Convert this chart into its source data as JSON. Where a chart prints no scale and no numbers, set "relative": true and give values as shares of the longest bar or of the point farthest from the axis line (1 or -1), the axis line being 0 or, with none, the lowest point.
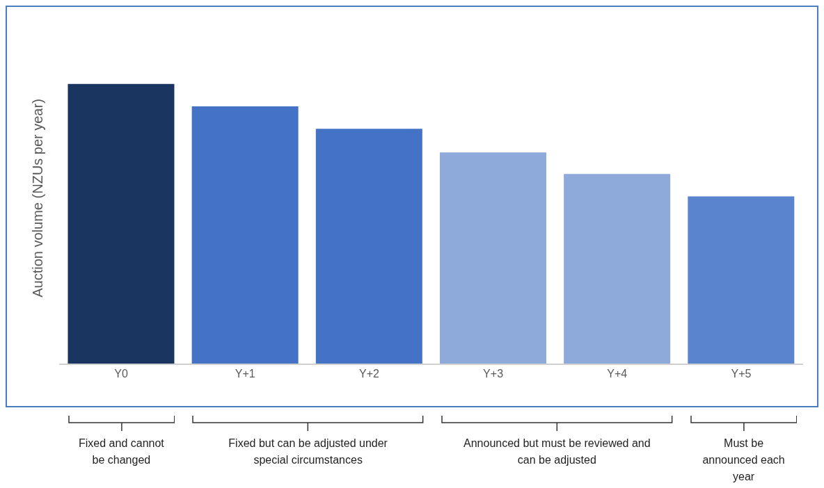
{
  "chart_data": {
    "type": "bar",
    "relative": true,
    "ylabel": "Auction volume (NZUs per year)",
    "categories": [
      "Y0",
      "Y+1",
      "Y+2",
      "Y+3",
      "Y+4",
      "Y+5"
    ],
    "values": [
      1,
      0.92,
      0.84,
      0.756,
      0.679,
      0.599
    ],
    "colors": [
      "#1b3561",
      "#4472c4",
      "#4472c4",
      "#8eaadb",
      "#8eaadb",
      "#5b84cf"
    ],
    "annotations": [
      "Fixed and cannot be changed",
      "Fixed but can be adjusted under special circumstances",
      "Announced but must be reviewed and can be adjusted",
      "Must be announced each year"
    ]
  }
}
